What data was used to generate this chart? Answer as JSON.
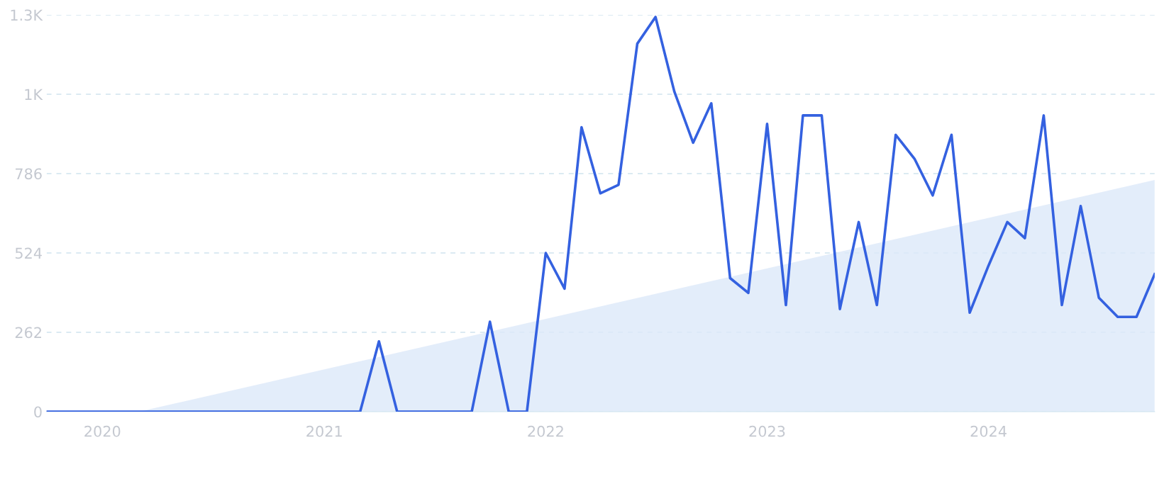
{
  "chart_data": {
    "type": "line",
    "xlim": [
      "2019-10",
      "2024-10"
    ],
    "ylim": [
      0,
      1310
    ],
    "xticks": [
      "2020",
      "2021",
      "2022",
      "2023",
      "2024"
    ],
    "yticks": [
      0,
      262,
      524,
      786,
      {
        "value": 1048,
        "label": "1K"
      },
      {
        "value": 1310,
        "label": "1.3K"
      }
    ],
    "grid": "y",
    "line_style": "solid",
    "marker": "none",
    "series": [
      {
        "type": "area",
        "color": "#dce9f9",
        "x": [
          "2020-03",
          "2024-10"
        ],
        "values": [
          0,
          765
        ]
      },
      {
        "color": "#3461e0",
        "x": [
          "2019-10",
          "2019-11",
          "2019-12",
          "2020-01",
          "2020-02",
          "2020-03",
          "2020-04",
          "2020-05",
          "2020-06",
          "2020-07",
          "2020-08",
          "2020-09",
          "2020-10",
          "2020-11",
          "2020-12",
          "2021-01",
          "2021-02",
          "2021-03",
          "2021-04",
          "2021-05",
          "2021-06",
          "2021-07",
          "2021-08",
          "2021-09",
          "2021-10",
          "2021-11",
          "2021-12",
          "2022-01",
          "2022-02",
          "2022-03",
          "2022-04",
          "2022-05",
          "2022-06",
          "2022-07",
          "2022-08",
          "2022-09",
          "2022-10",
          "2022-11",
          "2022-12",
          "2023-01",
          "2023-02",
          "2023-03",
          "2023-04",
          "2023-05",
          "2023-06",
          "2023-07",
          "2023-08",
          "2023-09",
          "2023-10",
          "2023-11",
          "2023-12",
          "2024-01",
          "2024-02",
          "2024-03",
          "2024-04",
          "2024-05",
          "2024-06",
          "2024-07",
          "2024-08",
          "2024-09",
          "2024-10"
        ],
        "values": [
          0,
          0,
          0,
          0,
          0,
          0,
          0,
          0,
          0,
          0,
          0,
          0,
          0,
          0,
          0,
          0,
          0,
          0,
          232,
          0,
          0,
          0,
          0,
          0,
          297,
          0,
          0,
          524,
          406,
          939,
          721,
          749,
          1215,
          1303,
          1057,
          888,
          1018,
          441,
          392,
          950,
          352,
          978,
          978,
          339,
          626,
          352,
          914,
          835,
          714,
          914,
          327,
          482,
          626,
          573,
          978,
          352,
          679,
          376,
          313,
          313,
          454
        ]
      }
    ]
  }
}
